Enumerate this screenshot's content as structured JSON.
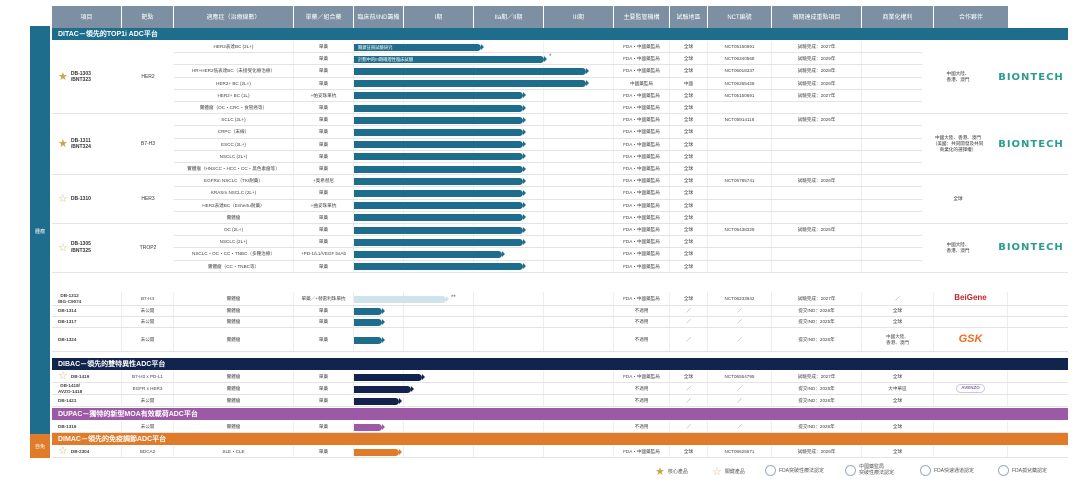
{
  "header": [
    "項目",
    "靶點",
    "適應症（治療線數）",
    "單藥／組合藥",
    "臨床前/IND籌備",
    "I期",
    "IIa期／II期",
    "III期",
    "主要監管機構",
    "試驗地區",
    "NCT編號",
    "預期達成重點項目",
    "商業化權利",
    "合作夥伴"
  ],
  "left_label_1": "腫瘤",
  "left_label_2": "自免",
  "platforms": {
    "ditac": "DITAC－領先的TOP1i ADC平台",
    "dibac": "DIBAC－領先的雙特異性ADC平台",
    "dupac": "DUPAC－獨特的新型MOA有效載荷ADC平台",
    "dimac": "DIMAC－領先的免疫調節ADC平台"
  },
  "groups": [
    {
      "name": "DB-1303\n/BNT323",
      "star": "core",
      "target": "HER2",
      "commercial": "中國大陸、\n香港、澳門",
      "partner": "BIONTECH"
    },
    {
      "name": "DB-1311\n/BNT324",
      "star": "core",
      "target": "B7-H3",
      "commercial": "中國大陸、香港、澳門\n（美國：共同開發及共同\n商業化的選擇權）",
      "partner": "BIONTECH"
    },
    {
      "name": "DB-1310",
      "star": "key",
      "target": "HER3",
      "commercial": "全球",
      "partner": ""
    },
    {
      "name": "DB-1305\n/BNT325",
      "star": "key",
      "target": "TROP2",
      "commercial": "中國大陸、\n香港、澳門",
      "partner": "BIONTECH"
    }
  ],
  "rows": [
    {
      "ind": "HER2表達BC (2L+)",
      "mono": "單藥",
      "reg": "FDA・中國藥監局",
      "area": "全球",
      "nct": "NCT05150691",
      "mile": "試驗完成：2027年",
      "bartext": "關鍵註冊試驗研究"
    },
    {
      "ind": "",
      "mono": "單藥",
      "reg": "FDA・中國藥監局",
      "area": "全球",
      "nct": "NCT06340568",
      "mile": "試驗完成：2029年",
      "bartext": "計劃中的III期確證性臨床試驗"
    },
    {
      "ind": "HR+HER2低表達BC（未接受化療治療）",
      "mono": "單藥",
      "reg": "FDA・中國藥監局",
      "area": "全球",
      "nct": "NCT06018337",
      "mile": "試驗完成：2028年",
      "bartext": ""
    },
    {
      "ind": "HER2+ BC (2L+)",
      "mono": "單藥",
      "reg": "中國藥監局",
      "area": "中國",
      "nct": "NCT06265428",
      "mile": "試驗完成：2026年",
      "bartext": ""
    },
    {
      "ind": "HER2+ BC (1L)",
      "mono": "+帕妥珠單抗",
      "reg": "FDA・中國藥監局",
      "area": "全球",
      "nct": "NCT05150691",
      "mile": "試驗完成：2027年",
      "bartext": ""
    },
    {
      "ind": "實體瘤（OC・CRC・食管癌等）",
      "mono": "單藥",
      "reg": "FDA・中國藥監局",
      "area": "全球",
      "nct": "",
      "mile": "",
      "bartext": ""
    },
    {
      "ind": "SCLC (2L+)",
      "mono": "單藥",
      "reg": "FDA・中國藥監局",
      "area": "全球",
      "nct": "NCT05914116",
      "mile": "試驗完成：2026年",
      "bartext": ""
    },
    {
      "ind": "CRPC（末線）",
      "mono": "單藥",
      "reg": "FDA・中國藥監局",
      "area": "全球",
      "nct": "",
      "mile": "",
      "bartext": ""
    },
    {
      "ind": "ESCC (2L+)",
      "mono": "單藥",
      "reg": "FDA・中國藥監局",
      "area": "全球",
      "nct": "",
      "mile": "",
      "bartext": ""
    },
    {
      "ind": "NSCLC (2L+)",
      "mono": "單藥",
      "reg": "FDA・中國藥監局",
      "area": "全球",
      "nct": "",
      "mile": "",
      "bartext": ""
    },
    {
      "ind": "實體瘤（HNSCC・HCC・CC・黑色素瘤等）",
      "mono": "單藥",
      "reg": "FDA・中國藥監局",
      "area": "全球",
      "nct": "",
      "mile": "",
      "bartext": ""
    },
    {
      "ind": "EGFRm NSCLC（TKI耐藥）",
      "mono": "+奧希替尼",
      "reg": "FDA・中國藥監局",
      "area": "全球",
      "nct": "NCT05785741",
      "mile": "試驗完成：2026年",
      "bartext": ""
    },
    {
      "ind": "KRASm NSCLC (2L+)",
      "mono": "單藥",
      "reg": "FDA・中國藥監局",
      "area": "全球",
      "nct": "",
      "mile": "",
      "bartext": ""
    },
    {
      "ind": "HER2表達BC（Enhertu耐藥）",
      "mono": "+曲妥珠單抗",
      "reg": "FDA・中國藥監局",
      "area": "全球",
      "nct": "",
      "mile": "",
      "bartext": ""
    },
    {
      "ind": "實體瘤",
      "mono": "單藥",
      "reg": "FDA・中國藥監局",
      "area": "全球",
      "nct": "",
      "mile": "",
      "bartext": ""
    },
    {
      "ind": "OC (2L+)",
      "mono": "單藥",
      "reg": "FDA・中國藥監局",
      "area": "全球",
      "nct": "NCT05438329",
      "mile": "試驗完成：2025年",
      "bartext": ""
    },
    {
      "ind": "NSCLC (2L+)",
      "mono": "單藥",
      "reg": "FDA・中國藥監局",
      "area": "全球",
      "nct": "",
      "mile": "",
      "bartext": ""
    },
    {
      "ind": "NSCLC・OC・CC・TNBC（多種治療）",
      "mono": "+PD-1/L1/VEGF bsAb",
      "reg": "FDA・中國藥監局",
      "area": "全球",
      "nct": "",
      "mile": "",
      "bartext": ""
    },
    {
      "ind": "實體瘤（CC・TNBC等）",
      "mono": "單藥",
      "reg": "FDA・中國藥監局",
      "area": "全球",
      "nct": "",
      "mile": "",
      "bartext": ""
    }
  ],
  "single_rows": [
    {
      "name": "DB-1312\n/BG-C9074",
      "target": "B7-H4",
      "ind": "實體瘤",
      "mono": "單藥／+替雷利珠單抗",
      "reg": "FDA・中國藥監局",
      "area": "全球",
      "nct": "NCT06233942",
      "mile": "試驗完成：2027年",
      "comm": "／",
      "partner": "BeiGene",
      "mark": "**"
    },
    {
      "name": "DB-1314",
      "target": "未公開",
      "ind": "實體瘤",
      "mono": "單藥",
      "reg": "不適用",
      "area": "／",
      "nct": "／",
      "mile": "提交IND：2026年",
      "comm": "全球",
      "partner": ""
    },
    {
      "name": "DB-1317",
      "target": "未公開",
      "ind": "實體瘤",
      "mono": "單藥",
      "reg": "不適用",
      "area": "／",
      "nct": "／",
      "mile": "提交IND：2025年",
      "comm": "全球",
      "partner": ""
    },
    {
      "name": "DB-1324",
      "target": "未公開",
      "ind": "實體瘤",
      "mono": "單藥",
      "reg": "不適用",
      "area": "／",
      "nct": "／",
      "mile": "提交IND：2026年",
      "comm": "中國大陸、\n香港、澳門",
      "partner": "GSK"
    }
  ],
  "dibac_rows": [
    {
      "name": "DB-1419",
      "target": "B7-H3 x PD-L1",
      "ind": "實體瘤",
      "mono": "單藥",
      "reg": "FDA・中國藥監局",
      "area": "全球",
      "nct": "NCT06554795",
      "mile": "試驗完成：2027年",
      "comm": "全球",
      "partner": "",
      "star": "key"
    },
    {
      "name": "DB-1418/\nAVZO-1418",
      "target": "EGFR x HER3",
      "ind": "實體瘤",
      "mono": "單藥",
      "reg": "不適用",
      "area": "／",
      "nct": "／",
      "mile": "提交IND：2025年",
      "comm": "大中華區",
      "partner": "AVENZO"
    },
    {
      "name": "DB-1421",
      "target": "未公開",
      "ind": "實體瘤",
      "mono": "單藥",
      "reg": "不適用",
      "area": "／",
      "nct": "／",
      "mile": "提交IND：2026年",
      "comm": "全球",
      "partner": ""
    }
  ],
  "dupac_row": {
    "name": "DB-1316",
    "target": "未公開",
    "ind": "實體瘤",
    "mono": "單藥",
    "reg": "不適用",
    "area": "／",
    "nct": "／",
    "mile": "提交IND：2026年",
    "comm": "全球",
    "partner": ""
  },
  "dimac_row": {
    "name": "DB-2304",
    "target": "BDCA2",
    "ind": "SLE・CLE",
    "mono": "單藥",
    "reg": "FDA・中國藥監局",
    "area": "全球",
    "nct": "NCT06625671",
    "mile": "試驗完成：2026年",
    "comm": "全球",
    "partner": "",
    "star": "key"
  },
  "legend": [
    "核心產品",
    "關鍵產品",
    "FDA突破性療法認定",
    "中國藥監局\n突破性療法認定",
    "FDA快速通道認定",
    "FDA孤兒藥認定"
  ],
  "partners": {
    "biontech": "BIONTECH",
    "beigene": "BeiGene",
    "gsk": "GSK",
    "avenzo": "AVENZO"
  },
  "colors": {
    "teal": "#1e6d8c",
    "navy": "#12244d",
    "purple": "#9b59a6",
    "orange": "#e07b2a",
    "header": "#7c8fa3"
  }
}
